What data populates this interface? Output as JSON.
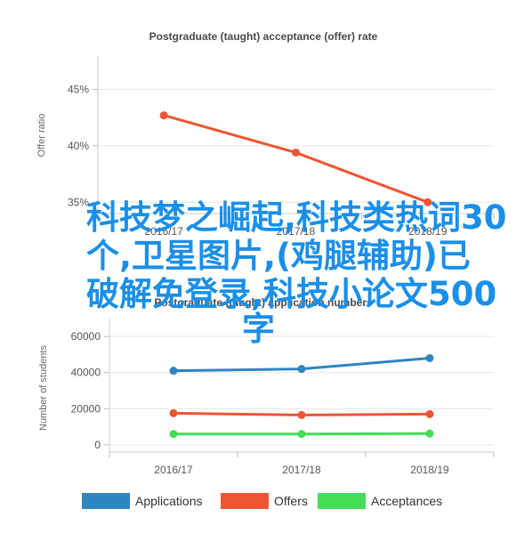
{
  "overlay_lines": [
    "科技梦之崛起,科技类热词30",
    "个,卫星图片,(鸡腿辅助)已",
    "破解免登录,科技小论文500",
    "字"
  ],
  "chart_data": [
    {
      "type": "line",
      "title": "Postgraduate (taught) acceptance (offer) rate",
      "ylabel": "Offer ratio",
      "xlabel": "",
      "categories": [
        "2016/17",
        "2017/18",
        "2018/19"
      ],
      "series": [
        {
          "values": [
            42.7,
            39.4,
            35.0
          ],
          "color": "#ee5533"
        }
      ],
      "yticks": [
        35,
        40,
        45
      ],
      "ytick_labels": [
        "35%",
        "40%",
        "45%"
      ],
      "ylim": [
        34,
        47
      ],
      "grid": true
    },
    {
      "type": "line",
      "title": "Postgraduate (taught) application numbers",
      "ylabel": "Number of students",
      "xlabel": "",
      "categories": [
        "2016/17",
        "2017/18",
        "2018/19"
      ],
      "series": [
        {
          "name": "Applications",
          "values": [
            41000,
            42000,
            48000
          ],
          "color": "#2e86c1"
        },
        {
          "name": "Offers",
          "values": [
            17500,
            16500,
            17000
          ],
          "color": "#ee5533"
        },
        {
          "name": "Acceptances",
          "values": [
            6000,
            6000,
            6200
          ],
          "color": "#44dd55"
        }
      ],
      "yticks": [
        0,
        20000,
        40000,
        60000
      ],
      "ytick_labels": [
        "0",
        "20000",
        "40000",
        "60000"
      ],
      "ylim": [
        -4000,
        64000
      ],
      "grid": true,
      "legend_position": "bottom"
    }
  ]
}
